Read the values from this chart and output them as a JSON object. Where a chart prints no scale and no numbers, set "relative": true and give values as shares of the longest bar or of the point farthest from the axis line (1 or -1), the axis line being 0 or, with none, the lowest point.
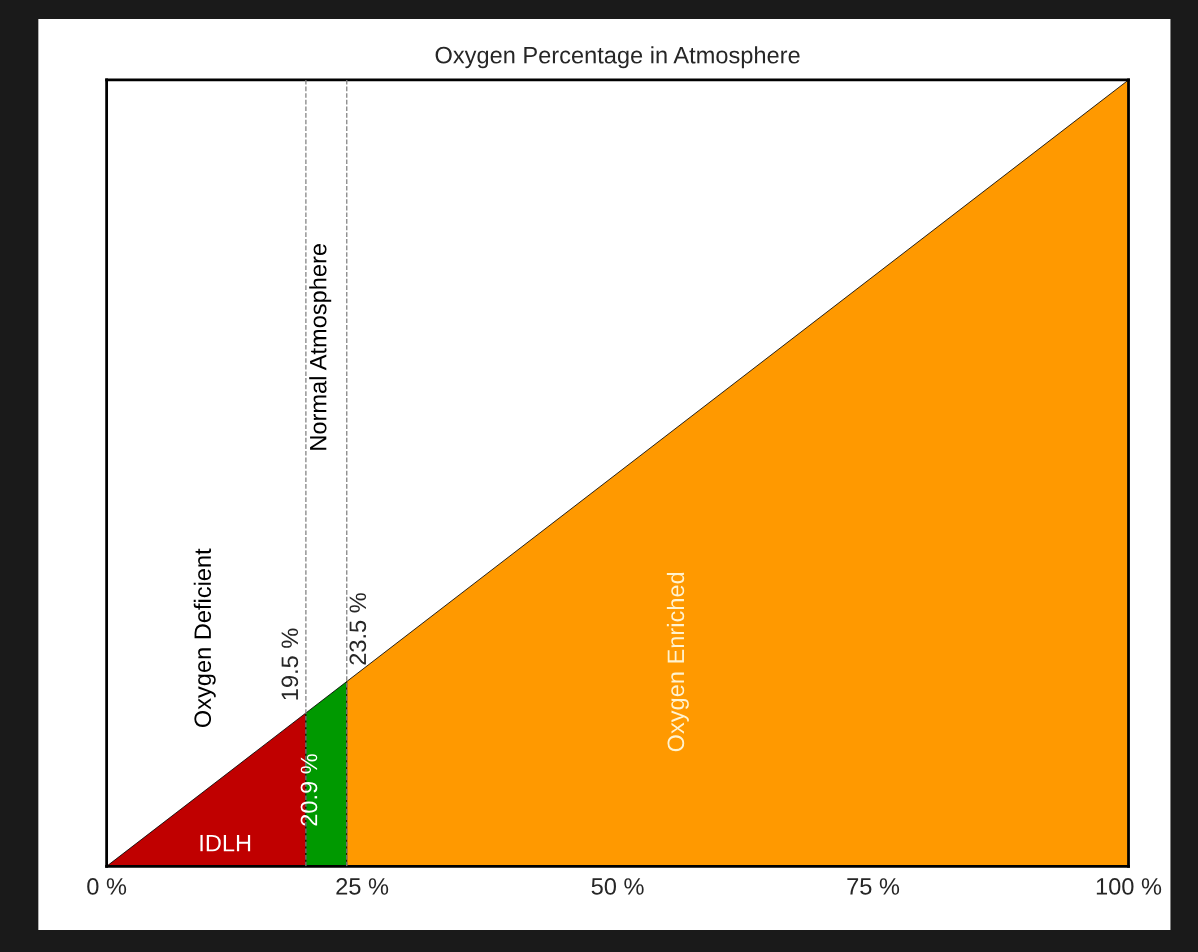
{
  "chart_data": {
    "type": "area",
    "title": "Oxygen Percentage in Atmosphere",
    "relative": true,
    "xlim": [
      0,
      100
    ],
    "xticks": [
      {
        "value": 0,
        "label": "0 %"
      },
      {
        "value": 25,
        "label": "25 %"
      },
      {
        "value": 50,
        "label": "50 %"
      },
      {
        "value": 75,
        "label": "75 %"
      },
      {
        "value": 100,
        "label": "100 %"
      }
    ],
    "series": [
      {
        "color": "#c00000",
        "x": [
          0,
          19.5
        ],
        "values": [
          0,
          0.195
        ]
      },
      {
        "color": "#009900",
        "x": [
          19.5,
          23.5
        ],
        "values": [
          0.195,
          0.235
        ]
      },
      {
        "color": "#ff9900",
        "x": [
          23.5,
          100
        ],
        "values": [
          0.235,
          1
        ]
      }
    ],
    "ref_lines": [
      {
        "axis": "x",
        "value": 19.5,
        "label": "19.5 %",
        "color": "#808080",
        "line_style": "dashed"
      },
      {
        "axis": "x",
        "value": 23.5,
        "label": "23.5 %",
        "color": "#808080",
        "line_style": "dashed"
      }
    ],
    "annotations": [
      "IDLH",
      "20.9 %",
      "Oxygen Deficient",
      "Normal Atmosphere",
      "Oxygen Enriched"
    ],
    "grid": false,
    "tick_labels": "x"
  }
}
